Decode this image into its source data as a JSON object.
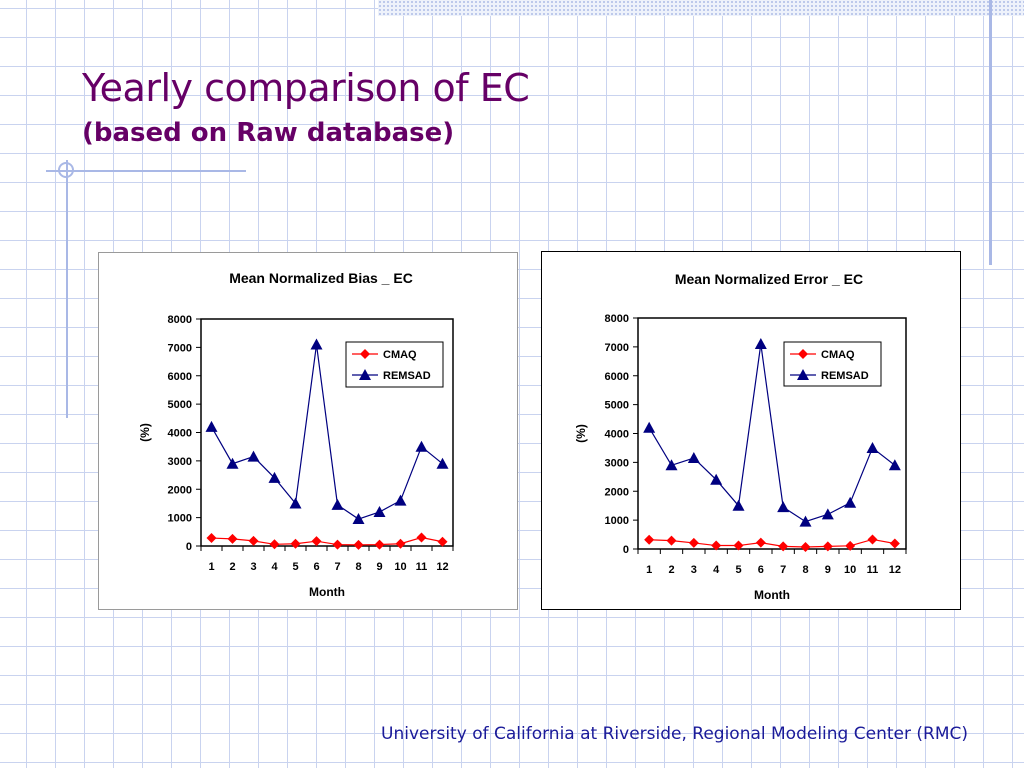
{
  "slide": {
    "title": "Yearly comparison of EC",
    "subtitle": "(based on Raw database)",
    "footer": "University of California at Riverside, Regional Modeling Center (RMC)",
    "colors": {
      "title": "#660066",
      "footer": "#1a1a99",
      "cmaq": "#ff0000",
      "remsad": "#000080"
    }
  },
  "chart_data": [
    {
      "type": "line",
      "title": "Mean Normalized Bias _ EC",
      "xlabel": "Month",
      "ylabel": "(%)",
      "ylim": [
        0,
        8000
      ],
      "yticks": [
        0,
        1000,
        2000,
        3000,
        4000,
        5000,
        6000,
        7000,
        8000
      ],
      "categories": [
        "1",
        "2",
        "3",
        "4",
        "5",
        "6",
        "7",
        "8",
        "9",
        "10",
        "11",
        "12"
      ],
      "legend": "top-right",
      "grid": false,
      "series": [
        {
          "name": "CMAQ",
          "marker": "diamond",
          "color": "#ff0000",
          "values": [
            280,
            250,
            180,
            60,
            80,
            170,
            50,
            40,
            50,
            80,
            300,
            150
          ]
        },
        {
          "name": "REMSAD",
          "marker": "triangle",
          "color": "#000080",
          "values": [
            4200,
            2900,
            3150,
            2400,
            1500,
            7100,
            1450,
            950,
            1200,
            1600,
            3500,
            2900
          ]
        }
      ]
    },
    {
      "type": "line",
      "title": "Mean Normalized Error _ EC",
      "xlabel": "Month",
      "ylabel": "(%)",
      "ylim": [
        0,
        8000
      ],
      "yticks": [
        0,
        1000,
        2000,
        3000,
        4000,
        5000,
        6000,
        7000,
        8000
      ],
      "categories": [
        "1",
        "2",
        "3",
        "4",
        "5",
        "6",
        "7",
        "8",
        "9",
        "10",
        "11",
        "12"
      ],
      "legend": "top-right",
      "grid": false,
      "series": [
        {
          "name": "CMAQ",
          "marker": "diamond",
          "color": "#ff0000",
          "values": [
            320,
            290,
            210,
            120,
            120,
            220,
            90,
            70,
            90,
            110,
            330,
            190
          ]
        },
        {
          "name": "REMSAD",
          "marker": "triangle",
          "color": "#000080",
          "values": [
            4200,
            2900,
            3150,
            2400,
            1500,
            7100,
            1450,
            950,
            1200,
            1600,
            3500,
            2900
          ]
        }
      ]
    }
  ]
}
